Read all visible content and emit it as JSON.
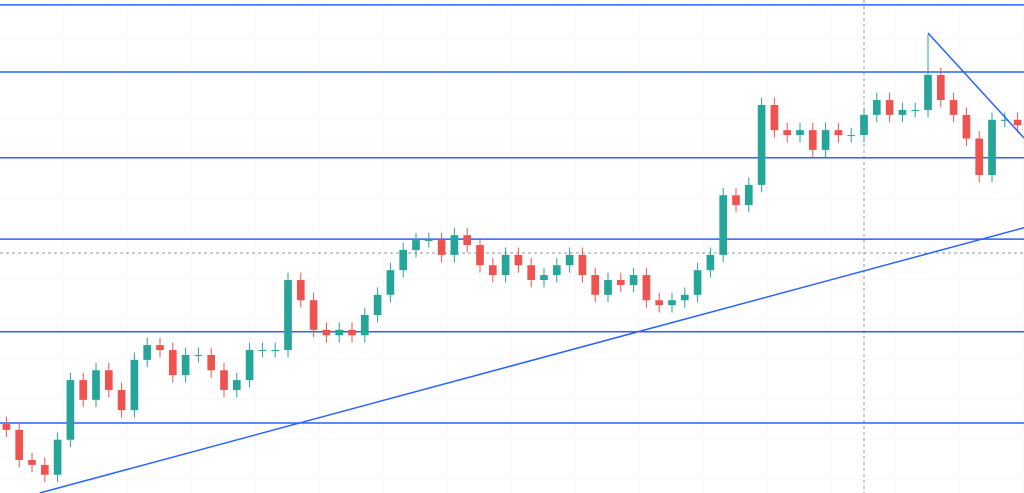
{
  "chart_data": {
    "type": "candlestick",
    "up_color": "#26a69a",
    "down_color": "#ef5350",
    "line_color": "#2962ff",
    "xlim": [
      -0.5,
      79.5
    ],
    "ylim": [
      0,
      100
    ],
    "grid": true,
    "open": [
      14.0,
      12.8,
      6.7,
      5.7,
      3.7,
      10.8,
      22.9,
      18.9,
      24.9,
      20.9,
      16.8,
      27.0,
      30.0,
      29.0,
      23.9,
      28.0,
      28.0,
      24.9,
      20.9,
      22.9,
      29.0,
      29.0,
      29.0,
      43.2,
      39.1,
      33.1,
      32.0,
      33.1,
      32.0,
      36.1,
      40.2,
      45.2,
      49.3,
      51.3,
      51.3,
      48.3,
      52.3,
      50.3,
      46.2,
      44.2,
      48.3,
      46.2,
      43.2,
      44.2,
      46.2,
      48.3,
      44.2,
      40.2,
      43.2,
      42.2,
      44.2,
      39.1,
      38.1,
      39.1,
      40.2,
      45.2,
      48.3,
      60.4,
      58.4,
      62.5,
      78.7,
      73.6,
      72.6,
      73.6,
      69.6,
      73.6,
      72.6,
      72.6,
      76.7,
      79.7,
      76.7,
      77.7,
      77.7,
      84.8,
      79.7,
      76.7,
      71.9,
      64.5,
      75.7,
      75.7
    ],
    "high": [
      15.5,
      14.3,
      8.2,
      7.2,
      12.3,
      24.4,
      24.4,
      26.4,
      26.4,
      22.4,
      28.5,
      31.5,
      31.5,
      30.5,
      29.5,
      29.5,
      29.5,
      26.4,
      24.4,
      30.5,
      30.5,
      30.5,
      44.7,
      44.7,
      40.6,
      34.6,
      34.6,
      34.6,
      37.6,
      41.7,
      46.7,
      50.8,
      52.8,
      52.8,
      52.8,
      53.8,
      53.8,
      51.8,
      47.7,
      49.8,
      49.8,
      47.7,
      45.7,
      47.7,
      49.8,
      49.8,
      45.7,
      44.7,
      44.7,
      45.7,
      45.7,
      40.6,
      40.6,
      41.7,
      46.7,
      49.8,
      61.9,
      61.9,
      64.0,
      80.2,
      80.2,
      75.1,
      75.1,
      75.1,
      75.1,
      75.1,
      74.1,
      78.2,
      81.2,
      81.2,
      79.2,
      79.2,
      93.0,
      86.3,
      81.2,
      78.2,
      73.4,
      77.2,
      77.2,
      77.2
    ],
    "low": [
      11.3,
      5.2,
      4.2,
      2.2,
      2.2,
      9.3,
      17.4,
      17.4,
      19.4,
      15.3,
      15.3,
      25.5,
      27.5,
      22.4,
      22.4,
      26.5,
      23.4,
      19.4,
      19.4,
      21.4,
      27.5,
      27.5,
      27.5,
      37.6,
      31.6,
      30.5,
      30.5,
      30.5,
      30.5,
      34.6,
      38.7,
      43.7,
      47.8,
      49.8,
      46.8,
      46.8,
      48.8,
      44.7,
      42.7,
      42.7,
      44.7,
      41.7,
      41.7,
      42.7,
      44.7,
      42.7,
      38.7,
      38.7,
      40.7,
      40.7,
      37.6,
      36.6,
      36.6,
      37.6,
      38.7,
      43.7,
      46.8,
      56.9,
      56.9,
      61.0,
      72.1,
      71.1,
      71.1,
      68.1,
      68.1,
      71.1,
      71.1,
      71.1,
      75.2,
      75.2,
      75.2,
      76.2,
      76.2,
      78.2,
      75.2,
      70.4,
      63.0,
      63.0,
      74.2,
      73.1
    ],
    "close": [
      12.8,
      6.7,
      5.7,
      3.7,
      10.8,
      22.9,
      18.9,
      24.9,
      20.9,
      16.8,
      27.0,
      30.0,
      29.0,
      23.9,
      28.0,
      28.0,
      24.9,
      20.9,
      22.9,
      29.0,
      29.0,
      29.0,
      43.2,
      39.1,
      33.1,
      32.0,
      33.1,
      32.0,
      36.1,
      40.2,
      45.2,
      49.3,
      51.3,
      51.3,
      48.3,
      52.3,
      50.3,
      46.2,
      44.2,
      48.3,
      46.2,
      43.2,
      44.2,
      46.2,
      48.3,
      44.2,
      40.2,
      43.2,
      42.2,
      44.2,
      39.1,
      38.1,
      39.1,
      40.2,
      45.2,
      48.3,
      60.4,
      58.4,
      62.5,
      78.7,
      73.6,
      72.6,
      73.6,
      69.6,
      73.6,
      72.6,
      72.6,
      76.7,
      79.7,
      76.7,
      77.7,
      77.7,
      84.8,
      79.7,
      76.7,
      71.9,
      64.5,
      75.7,
      75.7,
      74.6
    ],
    "levels": [
      99.0,
      85.4,
      68.0,
      51.5,
      32.7,
      14.2
    ],
    "trendlines": [
      {
        "x": [
          2.6,
          79.5
        ],
        "y": [
          0,
          53.8
        ]
      },
      {
        "x": [
          72.0,
          79.5
        ],
        "y": [
          93.3,
          72.0
        ]
      }
    ]
  }
}
